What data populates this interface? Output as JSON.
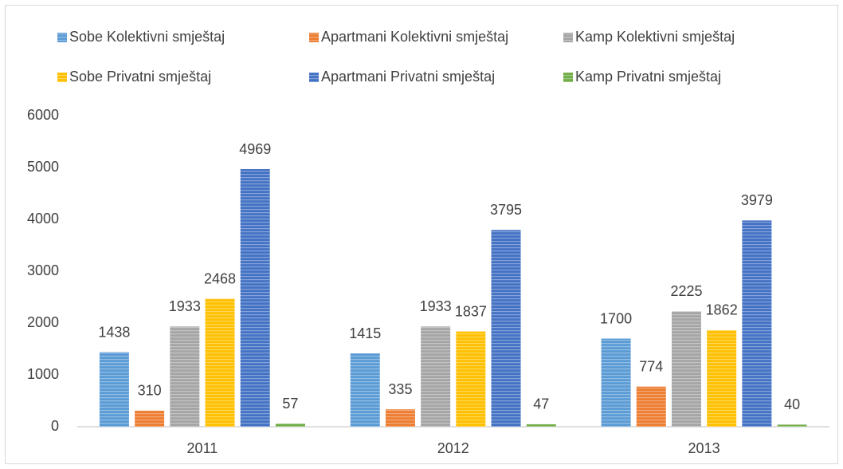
{
  "chart_data": {
    "type": "bar",
    "categories": [
      "2011",
      "2012",
      "2013"
    ],
    "series": [
      {
        "name": "Sobe Kolektivni smještaj",
        "color": "#5b9bd5",
        "values": [
          1438,
          1415,
          1700
        ]
      },
      {
        "name": "Apartmani Kolektivni smještaj",
        "color": "#ed7d31",
        "values": [
          310,
          335,
          774
        ]
      },
      {
        "name": "Kamp Kolektivni smještaj",
        "color": "#a5a5a5",
        "values": [
          1933,
          1933,
          2225
        ]
      },
      {
        "name": "Sobe Privatni smještaj",
        "color": "#ffc000",
        "values": [
          2468,
          1837,
          1862
        ]
      },
      {
        "name": "Apartmani Privatni smještaj",
        "color": "#4472c4",
        "values": [
          4969,
          3795,
          3979
        ]
      },
      {
        "name": "Kamp Privatni smještaj",
        "color": "#70ad47",
        "values": [
          57,
          47,
          40
        ]
      }
    ],
    "ylim": [
      0,
      6000
    ],
    "yticks": [
      0,
      1000,
      2000,
      3000,
      4000,
      5000,
      6000
    ],
    "grid": false,
    "legend": "top"
  }
}
